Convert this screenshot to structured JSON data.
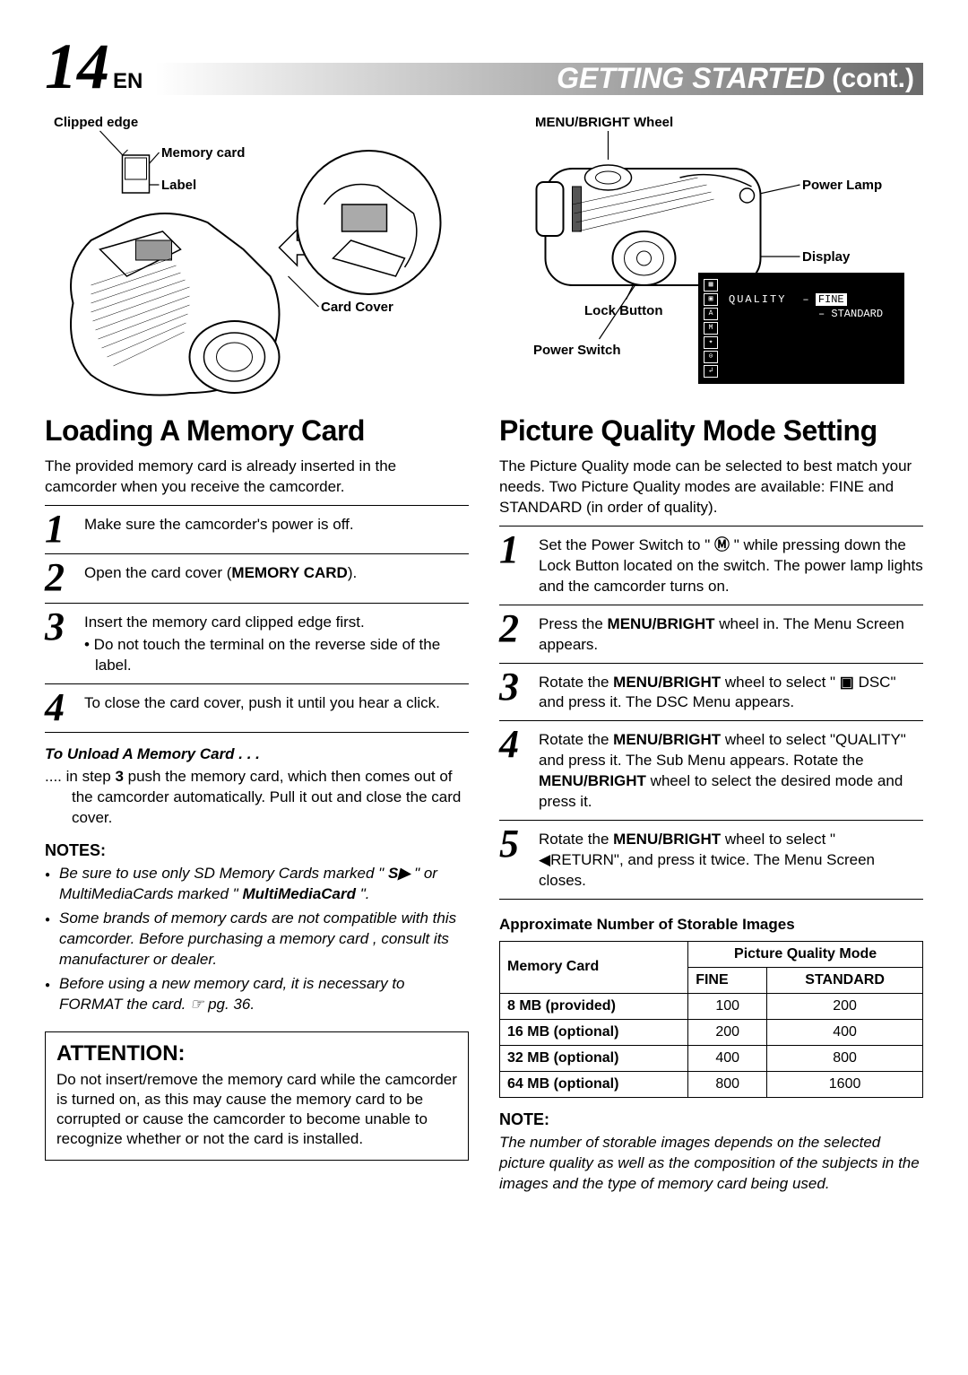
{
  "page": {
    "number": "14",
    "lang": "EN"
  },
  "header": {
    "title": "GETTING STARTED",
    "cont": "(cont.)"
  },
  "leftDiagram": {
    "labels": {
      "clippedEdge": "Clipped edge",
      "memoryCard": "Memory card",
      "label": "Label",
      "cardCover": "Card Cover"
    }
  },
  "rightDiagram": {
    "labels": {
      "menuWheel": "MENU/BRIGHT Wheel",
      "powerLamp": "Power Lamp",
      "display": "Display",
      "lockButton": "Lock Button",
      "powerSwitch": "Power Switch"
    },
    "screen": {
      "quality": "QUALITY",
      "fine": "FINE",
      "standard": "STANDARD"
    }
  },
  "left": {
    "title": "Loading A Memory Card",
    "intro": "The provided memory card is already inserted in the camcorder when you receive the camcorder.",
    "steps": [
      {
        "n": "1",
        "t": "Make sure the camcorder's power is off."
      },
      {
        "n": "2",
        "t": "Open the card cover (<b>MEMORY CARD</b>)."
      },
      {
        "n": "3",
        "t": "Insert the memory card clipped edge first.",
        "sub": "• Do not touch the terminal on the reverse side of the label."
      },
      {
        "n": "4",
        "t": "To close the card cover, push it until you hear a click."
      }
    ],
    "unloadH": "To Unload A Memory Card . . .",
    "unloadT": ".... in step <b>3</b> push the memory card, which then comes out of the camcorder automatically. Pull it out and close the card cover.",
    "notesH": "NOTES:",
    "notes": [
      "Be sure to use only SD Memory Cards marked \" <b>S▶</b> \" or MultiMediaCards marked \" <span class='mmcard'>MultiMediaCard</span> \".",
      "Some brands of memory cards are not compatible with this camcorder. Before purchasing a memory card , consult its manufacturer or dealer.",
      "Before using a new memory card, it is necessary to FORMAT the card. ☞ pg. 36."
    ],
    "attentionH": "ATTENTION:",
    "attentionT": "Do not insert/remove the memory card while the camcorder is turned on, as this may cause the memory card to be corrupted or cause the camcorder to become unable to recognize whether or not the card is installed."
  },
  "right": {
    "title": "Picture Quality Mode Setting",
    "intro": "The Picture Quality mode can be selected to best match your needs. Two Picture Quality modes are available:  FINE and STANDARD (in order of quality).",
    "steps": [
      {
        "n": "1",
        "t": "Set the Power Switch to \" <b>Ⓜ</b> \" while pressing down the Lock Button located on the switch. The power lamp lights and the camcorder turns on."
      },
      {
        "n": "2",
        "t": "Press the <b>MENU/BRIGHT</b> wheel in. The Menu Screen appears."
      },
      {
        "n": "3",
        "t": "Rotate the <b>MENU/BRIGHT</b> wheel to select \" <b>▣</b> DSC\" and press it. The DSC Menu appears."
      },
      {
        "n": "4",
        "t": "Rotate the <b>MENU/BRIGHT</b> wheel to select \"QUALITY\" and press it. The Sub Menu appears. Rotate the <b>MENU/BRIGHT</b> wheel to select the desired mode and press it."
      },
      {
        "n": "5",
        "t": "Rotate the <b>MENU/BRIGHT</b> wheel to select \" ◀RETURN\", and press it twice. The Menu Screen closes."
      }
    ],
    "tableH": "Approximate Number of Storable Images",
    "table": {
      "h1": "Memory Card",
      "h2": "Picture Quality Mode",
      "c1": "FINE",
      "c2": "STANDARD",
      "rows": [
        [
          "8 MB (provided)",
          "100",
          "200"
        ],
        [
          "16 MB (optional)",
          "200",
          "400"
        ],
        [
          "32 MB (optional)",
          "400",
          "800"
        ],
        [
          "64 MB (optional)",
          "800",
          "1600"
        ]
      ]
    },
    "noteH": "NOTE:",
    "noteT": "The number of storable images depends on the selected picture quality as well as the composition of the subjects in the images and the type of memory card being used."
  }
}
